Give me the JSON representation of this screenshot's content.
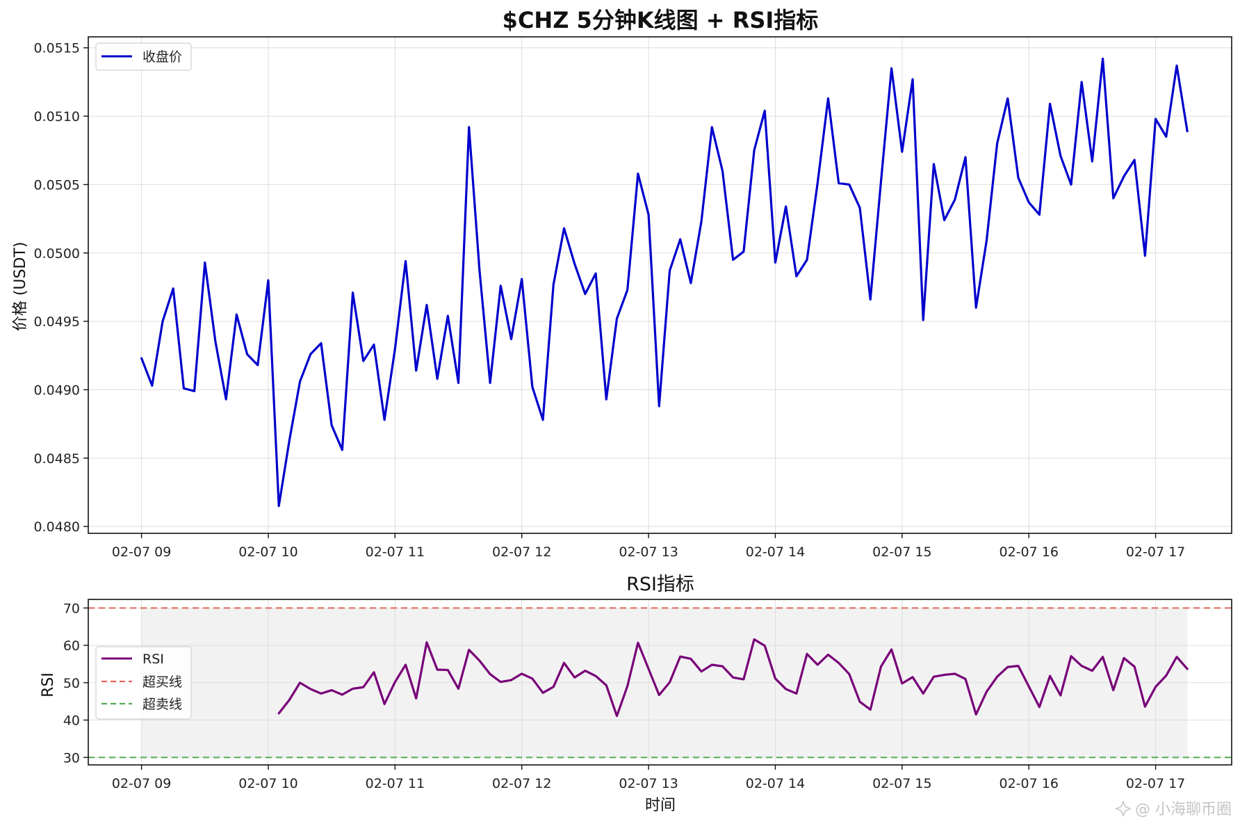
{
  "chart_data": [
    {
      "type": "line",
      "title": "$CHZ 5分钟K线图 + RSI指标",
      "ylabel": "价格 (USDT)",
      "xlabel": "",
      "ylim": [
        0.04795,
        0.05158
      ],
      "xlim": [
        -0.42,
        8.6
      ],
      "grid": true,
      "legend_position": "top-left",
      "yticks": [
        "0.0480",
        "0.0485",
        "0.0490",
        "0.0495",
        "0.0500",
        "0.0505",
        "0.0510",
        "0.0515"
      ],
      "xticks": [
        "02-07 09",
        "02-07 10",
        "02-07 11",
        "02-07 12",
        "02-07 13",
        "02-07 14",
        "02-07 15",
        "02-07 16",
        "02-07 17"
      ],
      "x_start": "02-07 09:00",
      "x_step_minutes": 5,
      "series": [
        {
          "name": "收盘价",
          "color": "#0000cd",
          "values": [
            0.04923,
            0.04903,
            0.0495,
            0.04974,
            0.04901,
            0.04899,
            0.04993,
            0.04935,
            0.04893,
            0.04955,
            0.04926,
            0.04918,
            0.0498,
            0.04815,
            0.04863,
            0.04906,
            0.04926,
            0.04934,
            0.04874,
            0.04856,
            0.04971,
            0.04921,
            0.04933,
            0.04878,
            0.0493,
            0.04994,
            0.04914,
            0.04962,
            0.04908,
            0.04954,
            0.04905,
            0.05092,
            0.04987,
            0.04905,
            0.04976,
            0.04937,
            0.04981,
            0.04902,
            0.04878,
            0.04977,
            0.05018,
            0.04992,
            0.0497,
            0.04985,
            0.04893,
            0.04952,
            0.04973,
            0.05058,
            0.05028,
            0.04888,
            0.04987,
            0.0501,
            0.04978,
            0.05023,
            0.05092,
            0.0506,
            0.04995,
            0.05001,
            0.05075,
            0.05104,
            0.04993,
            0.05034,
            0.04983,
            0.04995,
            0.05051,
            0.05113,
            0.05051,
            0.0505,
            0.05033,
            0.04966,
            0.05052,
            0.05135,
            0.05074,
            0.05127,
            0.04951,
            0.05065,
            0.05024,
            0.05039,
            0.0507,
            0.0496,
            0.05009,
            0.0508,
            0.05113,
            0.05055,
            0.05037,
            0.05028,
            0.05109,
            0.05071,
            0.0505,
            0.05125,
            0.05067,
            0.05142,
            0.0504,
            0.05056,
            0.05068,
            0.04998,
            0.05098,
            0.05085,
            0.05137,
            0.05089
          ]
        }
      ]
    },
    {
      "type": "line",
      "title": "RSI指标",
      "ylabel": "RSI",
      "xlabel": "时间",
      "ylim": [
        28,
        72.3
      ],
      "xlim": [
        -0.42,
        8.6
      ],
      "grid": true,
      "legend_position": "center-left",
      "yticks": [
        "30",
        "40",
        "50",
        "60",
        "70"
      ],
      "xticks": [
        "02-07 09",
        "02-07 10",
        "02-07 11",
        "02-07 12",
        "02-07 13",
        "02-07 14",
        "02-07 15",
        "02-07 16",
        "02-07 17"
      ],
      "x_start": "02-07 09:00",
      "x_step_minutes": 5,
      "shaded_band": {
        "y_from": 30,
        "y_to": 70,
        "x_from": "02-07 09:00",
        "x_to": "02-07 17:15",
        "color": "#f2f2f2"
      },
      "series": [
        {
          "name": "RSI",
          "color": "#780078",
          "values": [
            null,
            null,
            null,
            null,
            null,
            null,
            null,
            null,
            null,
            null,
            null,
            null,
            null,
            41.8,
            45.4,
            50.0,
            48.3,
            47.1,
            48.0,
            46.8,
            48.4,
            48.8,
            52.8,
            44.3,
            50.2,
            54.8,
            45.8,
            60.8,
            53.5,
            53.4,
            48.4,
            58.8,
            55.9,
            52.3,
            50.2,
            50.7,
            52.4,
            51.1,
            47.3,
            48.9,
            55.3,
            51.4,
            53.2,
            51.8,
            49.3,
            41.1,
            49.1,
            60.7,
            53.7,
            46.7,
            50.1,
            57.0,
            56.4,
            53.0,
            54.8,
            54.4,
            51.4,
            50.9,
            61.6,
            59.9,
            51.1,
            48.3,
            47.1,
            57.7,
            54.8,
            57.5,
            55.3,
            52.3,
            44.9,
            42.8,
            54.3,
            58.9,
            49.8,
            51.5,
            47.1,
            51.6,
            52.1,
            52.4,
            51.0,
            41.5,
            47.6,
            51.6,
            54.2,
            54.5,
            49.0,
            43.5,
            51.8,
            46.6,
            57.1,
            54.5,
            53.2,
            56.9,
            48.0,
            56.6,
            54.3,
            43.6,
            48.9,
            51.9,
            56.9,
            53.7
          ]
        },
        {
          "name": "超买线",
          "color": "#e8655e",
          "dashed": true,
          "constant": 70
        },
        {
          "name": "超卖线",
          "color": "#55aa55",
          "dashed": true,
          "constant": 30
        }
      ]
    }
  ],
  "watermark": {
    "icon": "sparkle-icon",
    "text": "@ 小海聊币圈"
  }
}
